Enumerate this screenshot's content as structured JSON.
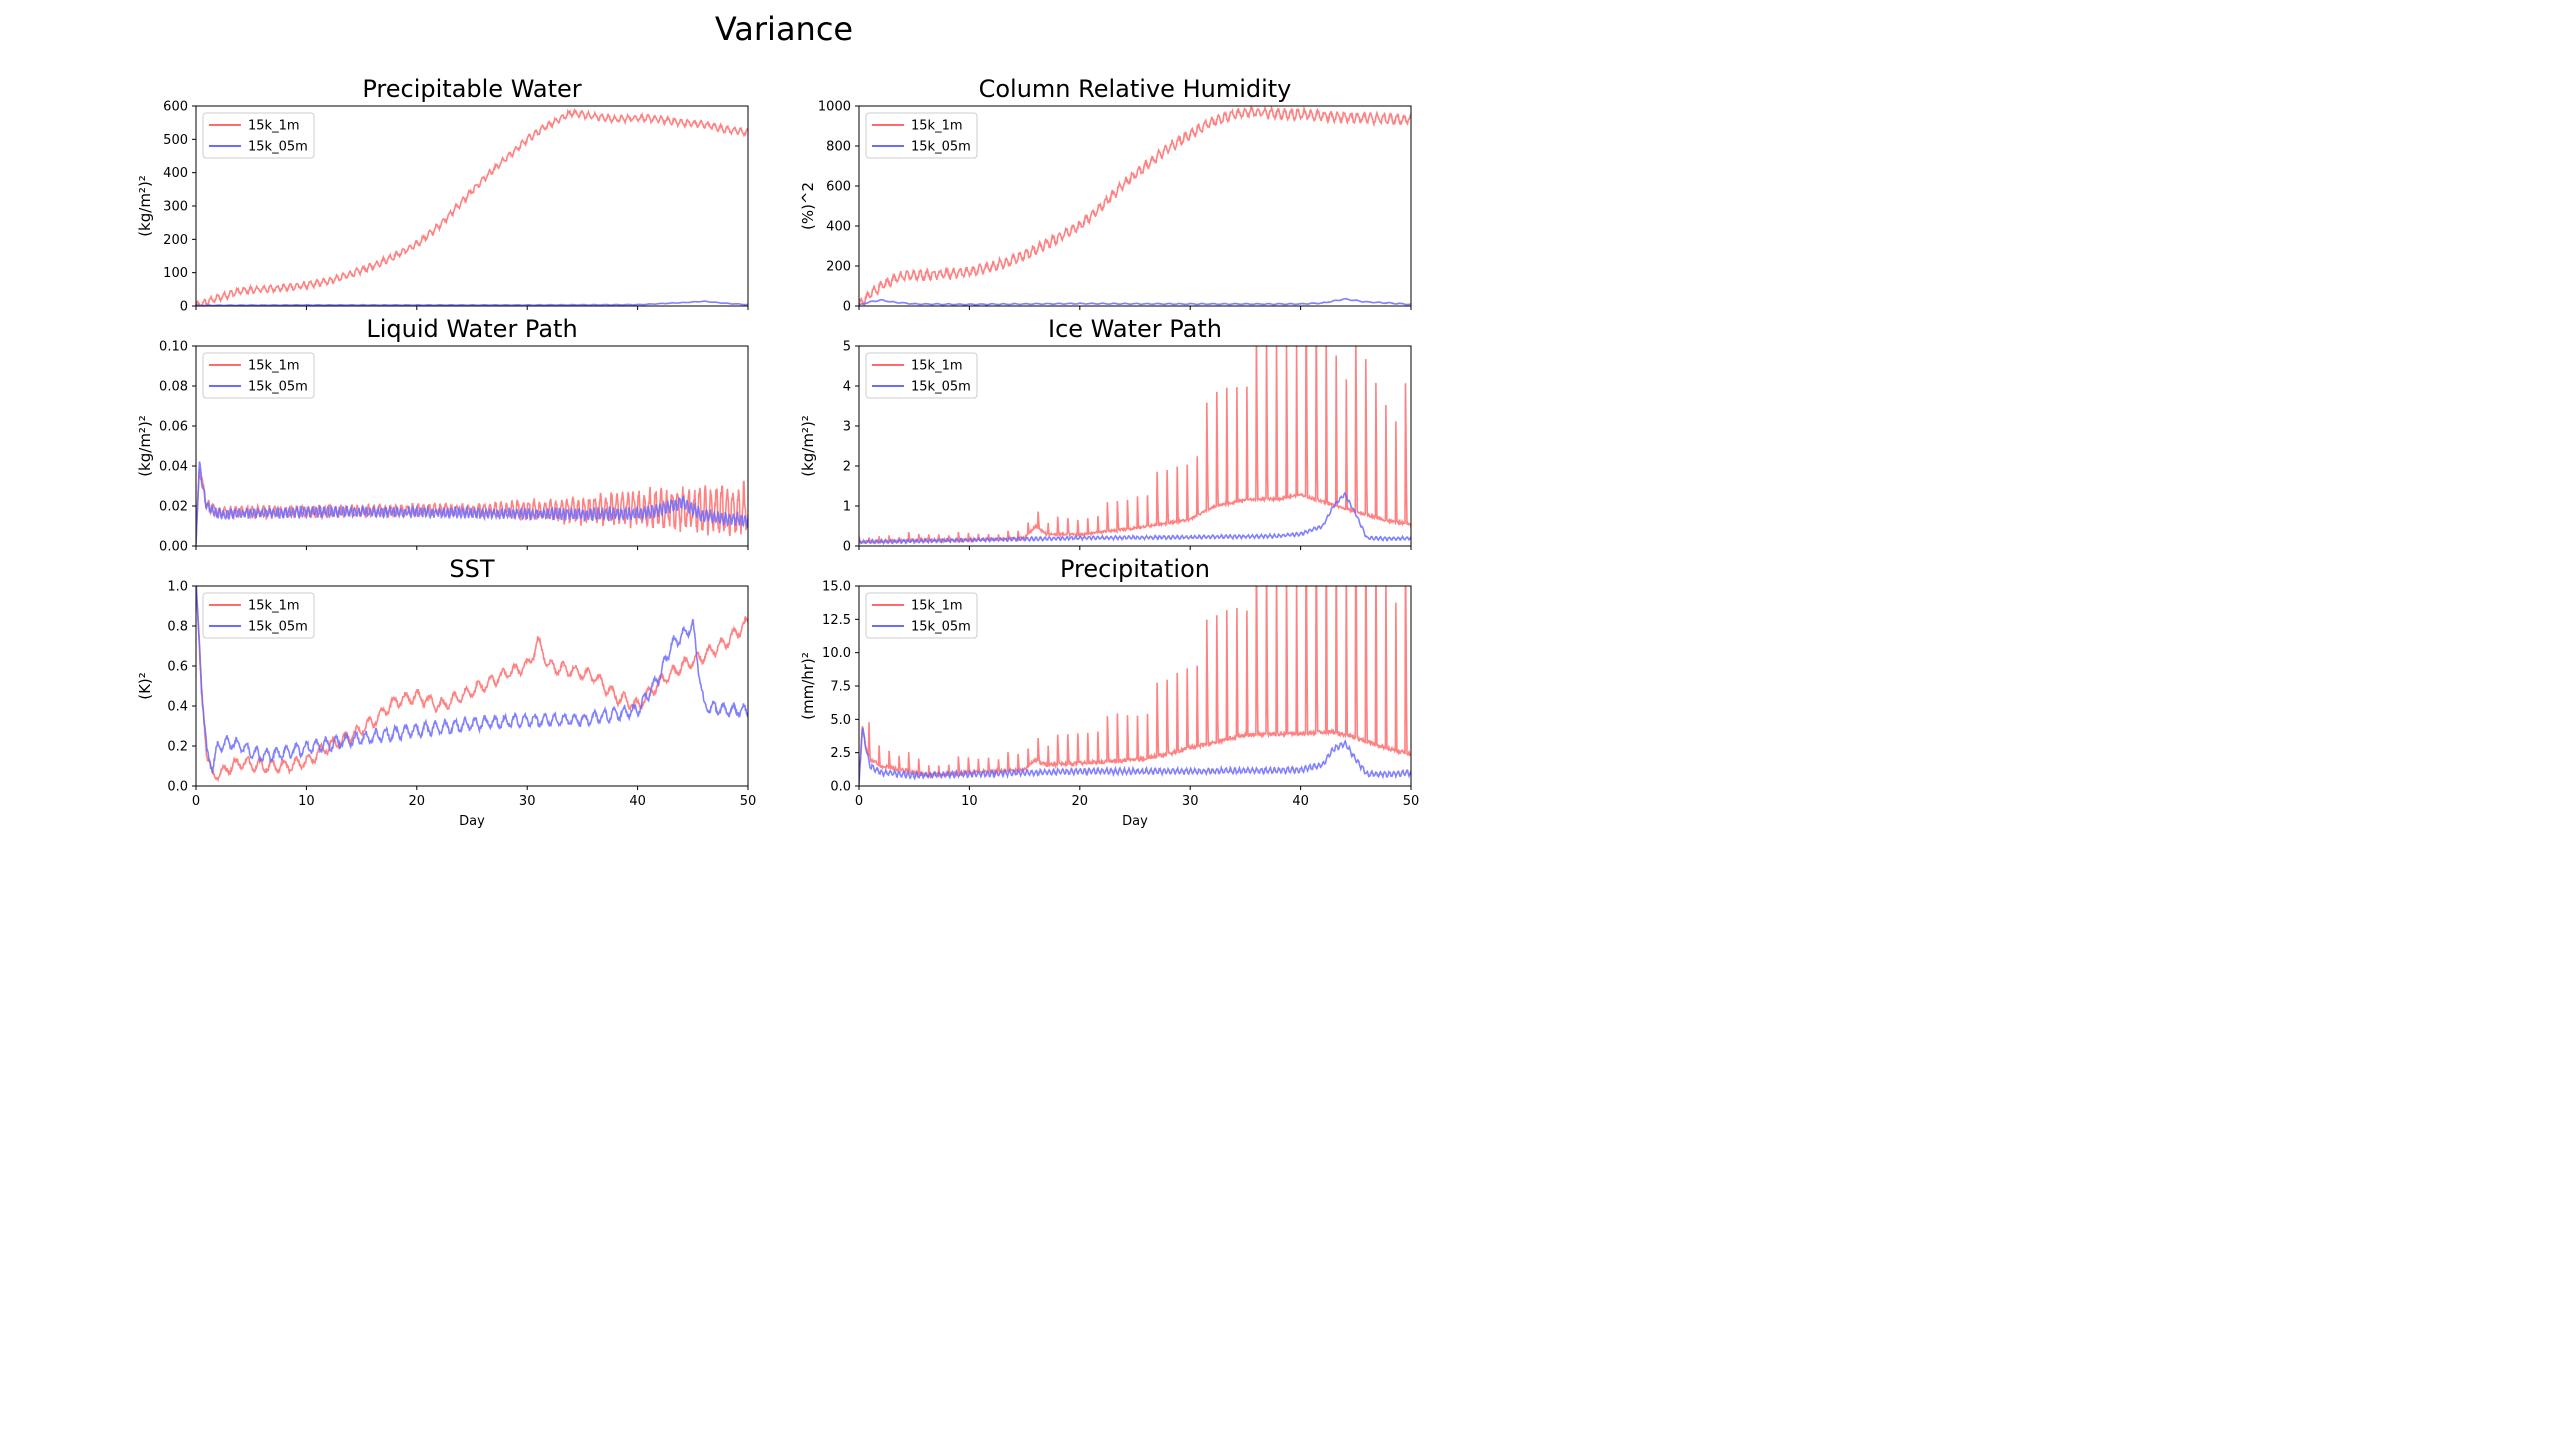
{
  "figure": {
    "title": "Variance",
    "xlabel": "Day"
  },
  "colors": {
    "series_1m": "#ff6b6b",
    "series_05m": "#6b6bff"
  },
  "chart_data": [
    {
      "type": "line",
      "title": "Precipitable Water",
      "ylabel": "(kg/m²)²",
      "xlabel": "",
      "xlim": [
        0,
        50
      ],
      "ylim": [
        0,
        600
      ],
      "yticks": [
        "0",
        "100",
        "200",
        "300",
        "400",
        "500",
        "600"
      ],
      "ytick_values": [
        0,
        100,
        200,
        300,
        400,
        500,
        600
      ],
      "xticks": [
        0,
        10,
        20,
        30,
        40,
        50
      ],
      "show_xticklabels": false,
      "legend": "top-left",
      "grid": false,
      "series": [
        {
          "name": "15k_1m",
          "color": "#ff6b6b",
          "x": [
            0,
            2,
            4,
            6,
            8,
            10,
            12,
            14,
            16,
            18,
            20,
            22,
            24,
            26,
            28,
            30,
            32,
            34,
            36,
            38,
            40,
            42,
            44,
            46,
            48,
            50
          ],
          "y": [
            0,
            25,
            45,
            50,
            55,
            62,
            75,
            95,
            120,
            150,
            185,
            240,
            310,
            380,
            440,
            500,
            545,
            580,
            570,
            560,
            565,
            560,
            550,
            545,
            530,
            520
          ],
          "noise": 12,
          "period": 0.6
        },
        {
          "name": "15k_05m",
          "color": "#6b6bff",
          "x": [
            0,
            10,
            20,
            30,
            40,
            44,
            46,
            48,
            50
          ],
          "y": [
            2,
            3,
            3,
            3,
            4,
            10,
            14,
            8,
            4
          ],
          "noise": 1,
          "period": 1
        }
      ]
    },
    {
      "type": "line",
      "title": "Column Relative Humidity",
      "ylabel": "(%)^2",
      "xlabel": "",
      "xlim": [
        0,
        50
      ],
      "ylim": [
        0,
        1000
      ],
      "yticks": [
        "0",
        "200",
        "400",
        "600",
        "800",
        "1000"
      ],
      "ytick_values": [
        0,
        200,
        400,
        600,
        800,
        1000
      ],
      "xticks": [
        0,
        10,
        20,
        30,
        40,
        50
      ],
      "show_xticklabels": false,
      "legend": "top-left",
      "grid": false,
      "series": [
        {
          "name": "15k_1m",
          "color": "#ff6b6b",
          "x": [
            0,
            1,
            2,
            3,
            4,
            6,
            8,
            10,
            12,
            14,
            16,
            18,
            20,
            22,
            24,
            26,
            28,
            30,
            32,
            34,
            36,
            38,
            40,
            42,
            44,
            46,
            48,
            50
          ],
          "y": [
            0,
            60,
            100,
            130,
            150,
            155,
            160,
            170,
            195,
            230,
            280,
            340,
            400,
            500,
            610,
            700,
            790,
            860,
            920,
            960,
            970,
            960,
            960,
            950,
            945,
            940,
            935,
            930
          ],
          "noise": 30,
          "period": 0.6
        },
        {
          "name": "15k_05m",
          "color": "#6b6bff",
          "x": [
            0,
            1,
            2,
            3,
            5,
            10,
            20,
            30,
            40,
            42,
            44,
            46,
            48,
            50
          ],
          "y": [
            5,
            20,
            30,
            20,
            10,
            8,
            12,
            10,
            10,
            15,
            35,
            20,
            15,
            8
          ],
          "noise": 3,
          "period": 1
        }
      ]
    },
    {
      "type": "line",
      "title": "Liquid Water Path",
      "ylabel": "(kg/m²)²",
      "xlabel": "",
      "xlim": [
        0,
        50
      ],
      "ylim": [
        0,
        0.1
      ],
      "yticks": [
        "0.00",
        "0.02",
        "0.04",
        "0.06",
        "0.08",
        "0.10"
      ],
      "ytick_values": [
        0,
        0.02,
        0.04,
        0.06,
        0.08,
        0.1
      ],
      "xticks": [
        0,
        10,
        20,
        30,
        40,
        50
      ],
      "show_xticklabels": false,
      "legend": "top-left",
      "grid": false,
      "series": [
        {
          "name": "15k_1m",
          "color": "#ff6b6b",
          "x": [
            0,
            0.3,
            0.6,
            1,
            2,
            5,
            10,
            20,
            25,
            30,
            35,
            40,
            45,
            50
          ],
          "y": [
            0.0,
            0.04,
            0.03,
            0.02,
            0.017,
            0.017,
            0.017,
            0.018,
            0.018,
            0.018,
            0.018,
            0.019,
            0.018,
            0.018
          ],
          "noise": 0.0035,
          "noise_end": 0.015,
          "period": 0.5
        },
        {
          "name": "15k_05m",
          "color": "#6b6bff",
          "x": [
            0,
            0.3,
            0.6,
            1,
            2,
            10,
            20,
            30,
            40,
            42,
            44,
            46,
            50
          ],
          "y": [
            0.0,
            0.042,
            0.03,
            0.02,
            0.016,
            0.017,
            0.017,
            0.016,
            0.016,
            0.018,
            0.022,
            0.015,
            0.013
          ],
          "noise": 0.003,
          "noise_end": 0.004,
          "period": 0.35
        }
      ]
    },
    {
      "type": "line",
      "title": "Ice Water Path",
      "ylabel": "(kg/m²)²",
      "xlabel": "",
      "xlim": [
        0,
        50
      ],
      "ylim": [
        0,
        5
      ],
      "yticks": [
        "0",
        "1",
        "2",
        "3",
        "4",
        "5"
      ],
      "ytick_values": [
        0,
        1,
        2,
        3,
        4,
        5
      ],
      "xticks": [
        0,
        10,
        20,
        30,
        40,
        50
      ],
      "show_xticklabels": false,
      "legend": "top-left",
      "grid": false,
      "series": [
        {
          "name": "15k_1m",
          "color": "#ff6b6b",
          "x": [
            0,
            5,
            10,
            15,
            16,
            17,
            20,
            25,
            30,
            32,
            35,
            38,
            40,
            42,
            44,
            46,
            48,
            50
          ],
          "y": [
            0.1,
            0.15,
            0.15,
            0.2,
            0.5,
            0.3,
            0.3,
            0.5,
            0.8,
            1.2,
            1.5,
            1.6,
            1.8,
            1.6,
            1.4,
            1.2,
            1.0,
            0.9
          ],
          "noise": 0.2,
          "period": 0.9,
          "spiky": true
        },
        {
          "name": "15k_05m",
          "color": "#6b6bff",
          "x": [
            0,
            5,
            10,
            20,
            30,
            38,
            40,
            42,
            43,
            44,
            45,
            46,
            48,
            50
          ],
          "y": [
            0.1,
            0.12,
            0.15,
            0.2,
            0.22,
            0.25,
            0.3,
            0.5,
            1.0,
            1.3,
            0.8,
            0.2,
            0.18,
            0.2
          ],
          "noise": 0.05,
          "period": 0.4
        }
      ]
    },
    {
      "type": "line",
      "title": "SST",
      "ylabel": "(K)²",
      "xlabel": "Day",
      "xlim": [
        0,
        50
      ],
      "ylim": [
        0,
        1
      ],
      "yticks": [
        "0.0",
        "0.2",
        "0.4",
        "0.6",
        "0.8",
        "1.0"
      ],
      "ytick_values": [
        0,
        0.2,
        0.4,
        0.6,
        0.8,
        1.0
      ],
      "xticks": [
        0,
        10,
        20,
        30,
        40,
        50
      ],
      "show_xticklabels": true,
      "legend": "top-left",
      "grid": false,
      "series": [
        {
          "name": "15k_1m",
          "color": "#ff6b6b",
          "x": [
            0,
            0.5,
            1,
            1.5,
            2,
            4,
            6,
            8,
            10,
            12,
            14,
            16,
            18,
            20,
            22,
            24,
            26,
            28,
            30,
            31,
            32,
            34,
            36,
            38,
            40,
            42,
            44,
            46,
            48,
            50
          ],
          "y": [
            1.0,
            0.5,
            0.15,
            0.05,
            0.06,
            0.12,
            0.1,
            0.1,
            0.12,
            0.2,
            0.25,
            0.32,
            0.42,
            0.45,
            0.4,
            0.45,
            0.5,
            0.56,
            0.6,
            0.72,
            0.6,
            0.58,
            0.55,
            0.45,
            0.4,
            0.52,
            0.6,
            0.65,
            0.72,
            0.82
          ],
          "noise": 0.04,
          "period": 1.1
        },
        {
          "name": "15k_05m",
          "color": "#6b6bff",
          "x": [
            0,
            0.5,
            1,
            1.5,
            2,
            3,
            4,
            6,
            8,
            10,
            14,
            20,
            25,
            30,
            35,
            40,
            42,
            43,
            44,
            45,
            46,
            48,
            50
          ],
          "y": [
            1.0,
            0.5,
            0.15,
            0.1,
            0.2,
            0.22,
            0.2,
            0.15,
            0.17,
            0.19,
            0.23,
            0.28,
            0.31,
            0.33,
            0.33,
            0.38,
            0.55,
            0.7,
            0.75,
            0.8,
            0.4,
            0.38,
            0.38
          ],
          "noise": 0.04,
          "period": 0.9
        }
      ]
    },
    {
      "type": "line",
      "title": "Precipitation",
      "ylabel": "(mm/hr)²",
      "xlabel": "Day",
      "xlim": [
        0,
        50
      ],
      "ylim": [
        0,
        15
      ],
      "yticks": [
        "0.0",
        "2.5",
        "5.0",
        "7.5",
        "10.0",
        "12.5",
        "15.0"
      ],
      "ytick_values": [
        0,
        2.5,
        5,
        7.5,
        10,
        12.5,
        15
      ],
      "xticks": [
        0,
        10,
        20,
        30,
        40,
        50
      ],
      "show_xticklabels": true,
      "legend": "top-left",
      "grid": false,
      "series": [
        {
          "name": "15k_1m",
          "color": "#ff6b6b",
          "x": [
            0,
            0.3,
            0.6,
            1,
            2,
            4,
            6,
            10,
            15,
            16,
            17,
            20,
            25,
            28,
            30,
            32,
            35,
            40,
            43,
            45,
            48,
            50
          ],
          "y": [
            0,
            4.5,
            3,
            2,
            1.5,
            1.2,
            0.8,
            1.0,
            1.2,
            2.0,
            1.6,
            1.8,
            2.2,
            2.8,
            3.5,
            4.0,
            5.0,
            5.5,
            6.0,
            5.5,
            4.5,
            4.0
          ],
          "noise": 0.9,
          "period": 0.9,
          "spiky": true
        },
        {
          "name": "15k_05m",
          "color": "#6b6bff",
          "x": [
            0,
            0.3,
            0.6,
            1,
            2,
            5,
            10,
            20,
            30,
            40,
            42,
            43,
            44,
            45,
            46,
            48,
            50
          ],
          "y": [
            0,
            4.5,
            3,
            1.5,
            1.0,
            0.8,
            0.9,
            1.1,
            1.1,
            1.2,
            1.6,
            2.8,
            3.2,
            2.0,
            0.9,
            0.9,
            1.0
          ],
          "noise": 0.25,
          "period": 0.4
        }
      ]
    }
  ]
}
